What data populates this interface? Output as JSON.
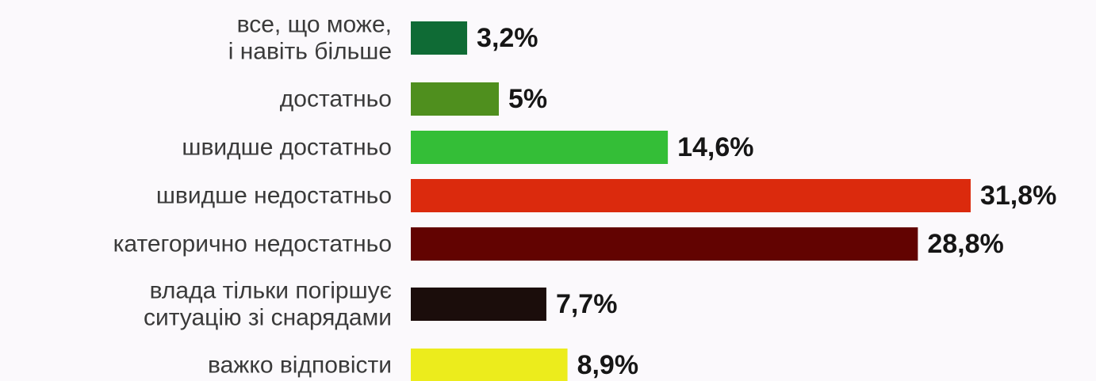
{
  "chart_data": {
    "type": "bar",
    "orientation": "horizontal",
    "categories": [
      [
        "все, що може,",
        "і навіть більше"
      ],
      [
        "достатньо"
      ],
      [
        "швидше достатньо"
      ],
      [
        "швидше недостатньо"
      ],
      [
        "категорично недостатньо"
      ],
      [
        "влада тільки погіршує",
        "ситуацію зі снарядами"
      ],
      [
        "важко відповісти"
      ]
    ],
    "values": [
      3.2,
      5,
      14.6,
      31.8,
      28.8,
      7.7,
      8.9
    ],
    "value_labels": [
      "3,2%",
      "5%",
      "14,6%",
      "31,8%",
      "28,8%",
      "7,7%",
      "8,9%"
    ],
    "colors": [
      "#0f6b35",
      "#4f8f1e",
      "#34be37",
      "#db2a0d",
      "#620301",
      "#1b0d0b",
      "#ecec1c"
    ],
    "title": "",
    "xlabel": "",
    "ylabel": "",
    "grid": false,
    "legend": "none"
  }
}
